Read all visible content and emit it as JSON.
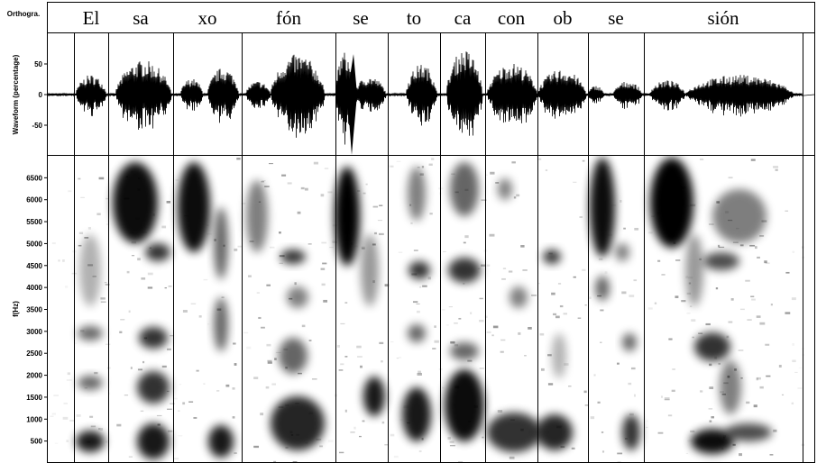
{
  "tiers": {
    "orthography": {
      "label": "Orthogra.",
      "syllables": [
        "El",
        "sa",
        "xo",
        "fón",
        "se",
        "to",
        "ca",
        "con",
        "ob",
        "se",
        "sión"
      ]
    },
    "waveform": {
      "label": "Waveform (percentage)",
      "ylim": [
        -100,
        100
      ],
      "yticks": [
        -50,
        0,
        50
      ]
    },
    "spectrogram": {
      "label": "f(Hz)",
      "ylim": [
        0,
        7000
      ],
      "yticks": [
        500,
        1000,
        1500,
        2000,
        2500,
        3000,
        3500,
        4000,
        4500,
        5000,
        5500,
        6000,
        6500
      ]
    }
  }
}
